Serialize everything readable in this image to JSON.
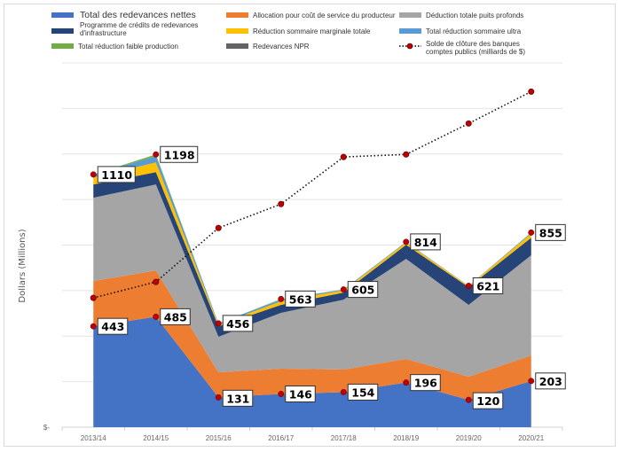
{
  "chart_data": {
    "type": "area",
    "stacked": true,
    "title": "",
    "xlabel": "",
    "ylabel": "Dollars  (Millions)",
    "ylim": [
      0,
      1600
    ],
    "ytick_step": 200,
    "ytick_labels": [
      "$-"
    ],
    "grid": true,
    "legend_placement": "top",
    "categories": [
      "2013/14",
      "2014/15",
      "2015/16",
      "2016/17",
      "2017/18",
      "2018/19",
      "2019/20",
      "2020/21"
    ],
    "series": [
      {
        "name": "Total des redevances nettes",
        "color": "#4472c4",
        "values": [
          443,
          485,
          131,
          146,
          154,
          196,
          120,
          203
        ]
      },
      {
        "name": "Allocation pour coût de service du producteur",
        "color": "#ed7d31",
        "values": [
          199,
          203,
          110,
          111,
          99,
          104,
          102,
          112
        ]
      },
      {
        "name": "Déduction totale puits profonds",
        "color": "#a5a5a5",
        "values": [
          366,
          378,
          156,
          245,
          307,
          439,
          315,
          440
        ]
      },
      {
        "name": "Programme de crédits de redevances d'infrastructure",
        "color": "#264478",
        "values": [
          58,
          54,
          46,
          35,
          31,
          62,
          78,
          77
        ]
      },
      {
        "name": "Réduction sommaire marginale totale",
        "color": "#ffc000",
        "values": [
          31,
          43,
          8,
          16,
          10,
          10,
          5,
          18
        ]
      },
      {
        "name": "Total réduction sommaire ultra",
        "color": "#5b9bd5",
        "values": [
          13,
          27,
          5,
          7,
          4,
          3,
          1,
          5
        ]
      },
      {
        "name": "Total réduction faible production",
        "color": "#70ad47",
        "values": [
          0,
          8,
          0,
          3,
          0,
          0,
          0,
          0
        ]
      },
      {
        "name": "Redevances NPR",
        "color": "#636363",
        "values": [
          0,
          0,
          0,
          0,
          0,
          0,
          0,
          0
        ]
      }
    ],
    "line_series": {
      "name": "Solde de clôture des banques comptes publics (milliards de $)",
      "color": "#c00000",
      "style": "dotted",
      "axis": "secondary (unlabeled)",
      "values": [
        568,
        638,
        875,
        980,
        1187,
        1198,
        1334,
        1474
      ]
    },
    "data_labels": {
      "totals": [
        "1110",
        "1198",
        "456",
        "563",
        "605",
        "814",
        "621",
        "855"
      ],
      "net_royalties": [
        "443",
        "485",
        "131",
        "146",
        "154",
        "196",
        "120",
        "203"
      ]
    }
  }
}
